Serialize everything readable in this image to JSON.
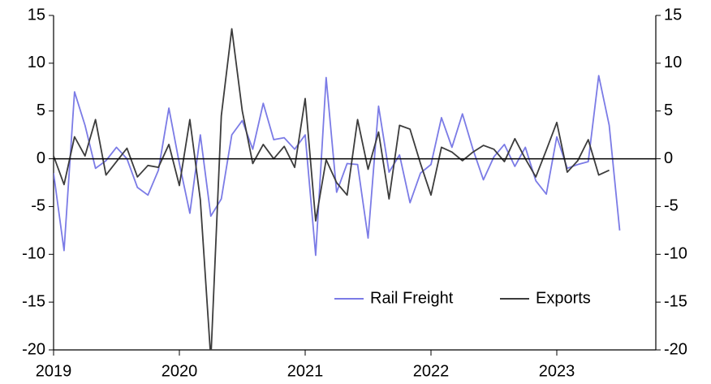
{
  "chart_data": {
    "type": "line",
    "categories": [
      "2019",
      null,
      null,
      null,
      null,
      null,
      null,
      null,
      null,
      null,
      null,
      null,
      "2020",
      null,
      null,
      null,
      null,
      null,
      null,
      null,
      null,
      null,
      null,
      null,
      "2021",
      null,
      null,
      null,
      null,
      null,
      null,
      null,
      null,
      null,
      null,
      null,
      "2022",
      null,
      null,
      null,
      null,
      null,
      null,
      null,
      null,
      null,
      null,
      null,
      "2023",
      null,
      null,
      null,
      null,
      null,
      null
    ],
    "series": [
      {
        "name": "Rail Freight",
        "color": "#7b7be6",
        "values": [
          -1.5,
          -9.6,
          7.0,
          3.5,
          -1.0,
          -0.2,
          1.2,
          0.0,
          -3.0,
          -3.8,
          -1.2,
          5.3,
          -0.5,
          -5.7,
          2.5,
          -6.0,
          -4.2,
          2.5,
          4.0,
          1.0,
          5.8,
          2.0,
          2.2,
          1.0,
          2.5,
          -10.1,
          8.5,
          -3.5,
          -0.5,
          -0.6,
          -8.3,
          5.5,
          -1.4,
          0.4,
          -4.6,
          -1.5,
          -0.6,
          4.3,
          1.2,
          4.7,
          1.0,
          -2.2,
          0.2,
          1.5,
          -0.8,
          1.2,
          -2.3,
          -3.7,
          2.3,
          -1.0,
          -0.6,
          -0.3,
          8.7,
          3.5,
          -7.5
        ]
      },
      {
        "name": "Exports",
        "color": "#3c3c3c",
        "values": [
          0.3,
          -2.7,
          2.3,
          0.3,
          4.1,
          -1.7,
          -0.3,
          1.1,
          -1.9,
          -0.7,
          -0.9,
          1.5,
          -2.8,
          4.1,
          -4.3,
          -21,
          4.5,
          13.6,
          5.0,
          -0.5,
          1.5,
          0.0,
          1.3,
          -0.9,
          6.3,
          -6.5,
          -0.1,
          -2.5,
          -3.8,
          4.1,
          -1.1,
          2.8,
          -4.2,
          3.5,
          3.1,
          -0.5,
          -3.8,
          1.2,
          0.7,
          -0.2,
          0.7,
          1.4,
          1.0,
          -0.3,
          2.1,
          0.0,
          -1.9,
          0.9,
          3.8,
          -1.4,
          -0.2,
          2.0,
          -1.7,
          -1.2,
          null
        ]
      }
    ],
    "ylim": [
      -20,
      15
    ],
    "yticks": [
      -20,
      -15,
      -10,
      -5,
      0,
      5,
      10,
      15
    ],
    "y2lim": [
      -20,
      15
    ],
    "y2ticks": [
      -20,
      -15,
      -10,
      -5,
      0,
      5,
      10,
      15
    ],
    "legend": "lower right"
  }
}
